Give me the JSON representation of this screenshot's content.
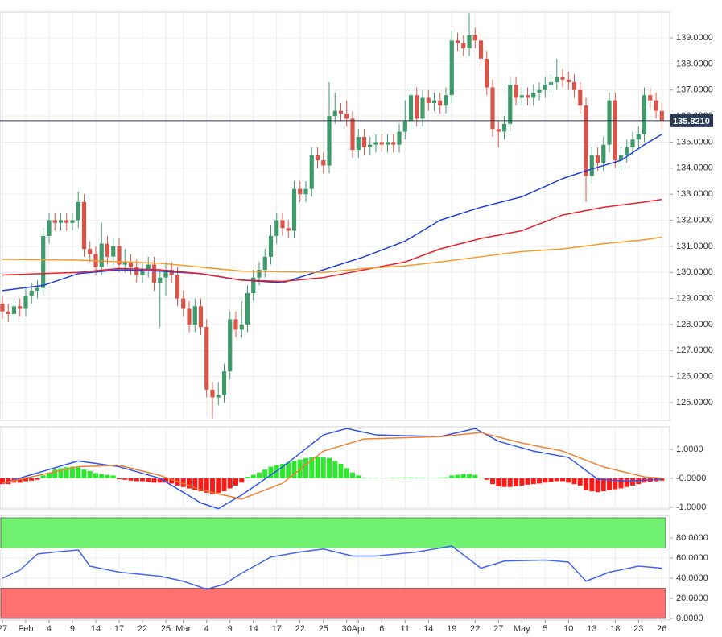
{
  "chart_data": [
    {
      "type": "candlestick",
      "xlim": [
        -0.41,
        114.34
      ],
      "ylim": [
        124.32,
        139.99
      ],
      "yticks": [
        {
          "value": 125,
          "label": "125.0000"
        },
        {
          "value": 126,
          "label": "126.0000"
        },
        {
          "value": 127,
          "label": "127.0000"
        },
        {
          "value": 128,
          "label": "128.0000"
        },
        {
          "value": 129,
          "label": "129.0000"
        },
        {
          "value": 130,
          "label": "130.0000"
        },
        {
          "value": 131,
          "label": "131.0000"
        },
        {
          "value": 132,
          "label": "132.0000"
        },
        {
          "value": 133,
          "label": "133.0000"
        },
        {
          "value": 134,
          "label": "134.0000"
        },
        {
          "value": 135,
          "label": "135.0000"
        },
        {
          "value": 136,
          "label": "136.0000"
        },
        {
          "value": 137,
          "label": "137.0000"
        },
        {
          "value": 138,
          "label": "138.0000"
        },
        {
          "value": 139,
          "label": "139.0000"
        }
      ],
      "grid": true,
      "up_color": "#3f9a6c",
      "down_color": "#d9554a",
      "open": [
        128.8,
        128.5,
        128.4,
        128.7,
        128.6,
        129.1,
        129.3,
        129.4,
        131.4,
        132.0,
        131.9,
        132.0,
        131.9,
        132.0,
        132.7,
        130.9,
        130.7,
        130.2,
        131.1,
        130.6,
        131.0,
        130.3,
        130.4,
        130.2,
        129.9,
        130.1,
        130.3,
        129.6,
        129.8,
        130.1,
        129.9,
        129.0,
        128.6,
        128.0,
        128.7,
        127.9,
        125.5,
        125.2,
        125.3,
        126.2,
        128.2,
        127.8,
        128.0,
        129.2,
        129.8,
        130.1,
        130.6,
        131.4,
        132.0,
        131.7,
        131.6,
        133.2,
        133.0,
        133.2,
        134.5,
        134.3,
        134.1,
        136.0,
        136.2,
        136.1,
        135.9,
        134.7,
        135.2,
        134.8,
        134.9,
        135.0,
        134.9,
        135.0,
        134.9,
        135.4,
        135.8,
        136.8,
        135.9,
        136.7,
        136.5,
        136.6,
        136.4,
        136.8,
        138.9,
        138.8,
        138.6,
        139.1,
        138.9,
        138.2,
        137.1,
        135.5,
        135.4,
        135.7,
        137.2,
        136.7,
        136.8,
        136.7,
        136.9,
        137.0,
        137.2,
        137.3,
        137.5,
        137.4,
        137.3,
        137.0,
        136.4,
        133.7,
        134.5,
        134.2,
        134.9,
        136.6,
        134.3,
        134.5,
        134.8,
        135.1,
        135.3,
        136.8,
        136.6,
        136.2
      ],
      "high": [
        129.1,
        128.8,
        129.0,
        129.0,
        129.4,
        129.6,
        129.7,
        131.7,
        132.3,
        132.3,
        132.3,
        132.3,
        132.3,
        133.1,
        133.0,
        131.2,
        131.0,
        131.9,
        131.4,
        131.3,
        131.3,
        130.9,
        130.7,
        130.5,
        130.4,
        130.6,
        130.6,
        130.1,
        130.4,
        130.4,
        130.2,
        129.3,
        128.9,
        129.0,
        129.0,
        128.2,
        125.8,
        125.8,
        126.5,
        128.5,
        128.5,
        128.9,
        129.5,
        130.1,
        130.4,
        130.9,
        131.8,
        132.3,
        132.3,
        132.0,
        133.5,
        133.5,
        133.5,
        134.8,
        134.8,
        134.6,
        137.3,
        136.9,
        136.5,
        136.6,
        136.2,
        135.5,
        135.5,
        135.2,
        135.3,
        135.3,
        135.3,
        135.3,
        135.7,
        136.6,
        137.1,
        137.1,
        137.0,
        137.0,
        136.9,
        136.9,
        137.1,
        139.3,
        139.2,
        139.1,
        139.95,
        139.4,
        139.2,
        138.5,
        137.4,
        135.8,
        136.0,
        137.5,
        137.5,
        137.1,
        137.1,
        137.2,
        137.3,
        137.5,
        137.6,
        138.2,
        137.8,
        137.7,
        137.6,
        137.3,
        136.7,
        134.8,
        134.8,
        135.2,
        136.9,
        136.9,
        134.8,
        135.1,
        135.4,
        135.6,
        137.1,
        137.1,
        136.9,
        136.5
      ],
      "low": [
        128.2,
        128.1,
        128.1,
        128.3,
        128.3,
        128.8,
        129.0,
        129.1,
        131.1,
        131.6,
        131.6,
        131.6,
        131.6,
        131.7,
        130.6,
        130.4,
        129.9,
        129.9,
        130.3,
        130.3,
        130.0,
        130.0,
        129.9,
        129.6,
        129.6,
        129.8,
        129.3,
        127.9,
        129.1,
        129.6,
        128.7,
        128.3,
        127.7,
        127.7,
        127.6,
        125.2,
        124.4,
        124.9,
        125.0,
        125.9,
        127.5,
        127.5,
        127.7,
        128.9,
        129.5,
        129.8,
        130.3,
        131.1,
        131.4,
        131.3,
        131.3,
        132.7,
        132.7,
        132.9,
        134.0,
        133.8,
        133.8,
        135.7,
        135.8,
        135.6,
        134.4,
        134.4,
        134.5,
        134.5,
        134.6,
        134.6,
        134.6,
        134.6,
        134.6,
        135.1,
        135.5,
        135.6,
        135.6,
        136.2,
        136.2,
        136.1,
        136.1,
        136.5,
        138.5,
        138.3,
        138.3,
        138.6,
        137.9,
        136.8,
        135.2,
        134.8,
        135.1,
        135.4,
        136.4,
        136.4,
        136.4,
        136.4,
        136.6,
        136.7,
        136.9,
        137.0,
        137.1,
        137.0,
        136.7,
        136.1,
        132.7,
        133.4,
        133.9,
        133.9,
        134.6,
        134.0,
        133.9,
        134.2,
        134.5,
        134.8,
        135.0,
        136.3,
        135.9,
        135.5
      ],
      "close": [
        128.5,
        128.4,
        128.7,
        128.6,
        129.1,
        129.3,
        129.4,
        131.4,
        132.0,
        131.9,
        132.0,
        131.9,
        132.0,
        132.7,
        130.9,
        130.7,
        130.2,
        131.1,
        130.6,
        131.0,
        130.3,
        130.4,
        130.2,
        129.9,
        130.1,
        130.3,
        129.6,
        129.8,
        130.1,
        129.9,
        129.0,
        128.6,
        128.0,
        128.7,
        127.9,
        125.5,
        125.2,
        125.3,
        126.2,
        128.2,
        127.8,
        128.0,
        129.2,
        129.8,
        130.1,
        130.6,
        131.4,
        132.0,
        131.7,
        131.6,
        133.2,
        133.0,
        133.2,
        134.5,
        134.3,
        134.1,
        136.0,
        136.2,
        136.1,
        135.9,
        134.7,
        135.2,
        134.8,
        134.9,
        135.0,
        134.9,
        135.0,
        134.9,
        135.4,
        135.8,
        136.8,
        135.9,
        136.7,
        136.5,
        136.6,
        136.4,
        136.8,
        138.9,
        138.8,
        138.6,
        139.1,
        138.9,
        138.2,
        137.1,
        135.5,
        135.4,
        135.7,
        137.2,
        136.7,
        136.8,
        136.7,
        136.9,
        137.0,
        137.2,
        137.3,
        137.5,
        137.4,
        137.3,
        137.0,
        136.4,
        133.7,
        134.5,
        134.2,
        134.9,
        136.6,
        134.3,
        134.5,
        134.8,
        135.1,
        135.3,
        136.8,
        136.6,
        136.2,
        135.821
      ],
      "series": [
        {
          "color": "#1f3fd8",
          "x": [
            0,
            7,
            13,
            20,
            27,
            34,
            41,
            48,
            55,
            62,
            69,
            75,
            82,
            89,
            96,
            100,
            103,
            106,
            110,
            113
          ],
          "values": [
            129.3,
            129.5,
            129.95,
            130.1,
            130.05,
            129.95,
            129.7,
            129.6,
            130.1,
            130.6,
            131.2,
            132.0,
            132.5,
            132.9,
            133.6,
            133.9,
            134.1,
            134.3,
            134.9,
            135.3
          ]
        },
        {
          "color": "#e8202a",
          "x": [
            0,
            13,
            20,
            27,
            34,
            41,
            48,
            55,
            62,
            69,
            75,
            82,
            89,
            96,
            103,
            110,
            113
          ],
          "values": [
            129.9,
            130.0,
            130.15,
            130.1,
            129.95,
            129.7,
            129.65,
            129.8,
            130.1,
            130.4,
            130.9,
            131.3,
            131.6,
            132.2,
            132.5,
            132.7,
            132.8
          ]
        },
        {
          "color": "#f39a2a",
          "x": [
            0,
            13,
            27,
            41,
            55,
            62,
            69,
            75,
            82,
            89,
            96,
            103,
            110,
            113
          ],
          "values": [
            130.5,
            130.47,
            130.35,
            130.05,
            130.0,
            130.15,
            130.25,
            130.4,
            130.6,
            130.8,
            130.9,
            131.1,
            131.25,
            131.35
          ]
        }
      ],
      "last_price": {
        "value": 135.821,
        "label": "135.8210",
        "color": "#2b3a55"
      }
    },
    {
      "type": "macd",
      "xlim": [
        -0.41,
        114.34
      ],
      "ylim": [
        -1.06,
        1.78
      ],
      "yticks": [
        {
          "value": 1,
          "label": "1.0000"
        },
        {
          "value": 0,
          "label": "-0.0000"
        },
        {
          "value": -1,
          "label": "-1.0000"
        }
      ],
      "grid": true,
      "up_color": "#2ee82e",
      "down_color": "#ff1a1a",
      "histogram": [
        -0.2,
        -0.2,
        -0.15,
        -0.15,
        -0.1,
        -0.08,
        -0.05,
        0.1,
        0.2,
        0.3,
        0.35,
        0.38,
        0.4,
        0.38,
        0.3,
        0.25,
        0.18,
        0.15,
        0.12,
        0.1,
        -0.03,
        -0.05,
        -0.08,
        -0.1,
        -0.1,
        -0.12,
        -0.15,
        -0.15,
        -0.15,
        -0.18,
        -0.25,
        -0.3,
        -0.35,
        -0.4,
        -0.45,
        -0.5,
        -0.55,
        -0.5,
        -0.45,
        -0.35,
        -0.25,
        -0.15,
        0.05,
        0.12,
        0.2,
        0.3,
        0.4,
        0.45,
        0.5,
        0.55,
        0.6,
        0.65,
        0.7,
        0.72,
        0.74,
        0.72,
        0.7,
        0.6,
        0.5,
        0.35,
        0.2,
        0.1,
        0.02,
        0.01,
        0.01,
        0.0,
        0.01,
        0.02,
        0.02,
        0.03,
        0.03,
        0.02,
        0.02,
        0.01,
        0.01,
        0.02,
        0.03,
        0.1,
        0.12,
        0.15,
        0.15,
        0.12,
        0.01,
        -0.05,
        -0.2,
        -0.28,
        -0.3,
        -0.3,
        -0.28,
        -0.25,
        -0.22,
        -0.2,
        -0.18,
        -0.15,
        -0.12,
        -0.1,
        -0.1,
        -0.15,
        -0.2,
        -0.25,
        -0.4,
        -0.45,
        -0.48,
        -0.45,
        -0.4,
        -0.38,
        -0.35,
        -0.3,
        -0.25,
        -0.2,
        -0.15,
        -0.12,
        -0.1,
        -0.08
      ],
      "series": [
        {
          "color": "#3355ee",
          "x": [
            0,
            13,
            20,
            27,
            34,
            37,
            41,
            48,
            55,
            59,
            64,
            75,
            81,
            85,
            91,
            97,
            102,
            107,
            113
          ],
          "values": [
            -0.17,
            0.6,
            0.4,
            0.0,
            -0.85,
            -1.05,
            -0.58,
            0.39,
            1.5,
            1.72,
            1.5,
            1.44,
            1.72,
            1.28,
            0.94,
            0.72,
            -0.03,
            -0.1,
            -0.03
          ]
        },
        {
          "color": "#f08030",
          "x": [
            0,
            13,
            20,
            27,
            34,
            41,
            48,
            55,
            62,
            75,
            82,
            89,
            96,
            103,
            110,
            113
          ],
          "values": [
            -0.17,
            0.4,
            0.45,
            0.1,
            -0.4,
            -0.72,
            -0.17,
            0.94,
            1.36,
            1.44,
            1.58,
            1.22,
            0.94,
            0.39,
            0.05,
            0.0
          ]
        }
      ]
    },
    {
      "type": "rsi",
      "xlim": [
        -0.41,
        114.34
      ],
      "ylim": [
        -1.6,
        102.4
      ],
      "yticks": [
        {
          "value": 0,
          "label": "0.0000"
        },
        {
          "value": 20,
          "label": "20.0000"
        },
        {
          "value": 40,
          "label": "40.0000"
        },
        {
          "value": 60,
          "label": "60.0000"
        },
        {
          "value": 80,
          "label": "80.0000"
        }
      ],
      "grid": true,
      "bands": [
        {
          "from": 70,
          "to": 100,
          "color": "#70f270"
        },
        {
          "from": 0,
          "to": 30,
          "color": "#ff7070"
        }
      ],
      "series": [
        {
          "color": "#4466ee",
          "x": [
            0,
            3,
            6,
            9,
            13,
            15,
            20,
            27,
            31,
            35,
            38,
            41,
            46,
            51,
            55,
            60,
            64,
            71,
            77,
            82,
            86,
            93,
            97,
            100,
            104,
            109,
            113
          ],
          "values": [
            40,
            48,
            64,
            66,
            68,
            52,
            46,
            42,
            37,
            29,
            34,
            45,
            61,
            66,
            69,
            62,
            62,
            66,
            72,
            50,
            57,
            58,
            56,
            37,
            46,
            52,
            50
          ]
        }
      ],
      "xticks": [
        {
          "value": 0,
          "label": "27"
        },
        {
          "value": 4,
          "label": "Feb"
        },
        {
          "value": 8,
          "label": "4"
        },
        {
          "value": 12,
          "label": "9"
        },
        {
          "value": 16,
          "label": "14"
        },
        {
          "value": 20,
          "label": "17"
        },
        {
          "value": 24,
          "label": "22"
        },
        {
          "value": 28,
          "label": "25"
        },
        {
          "value": 31,
          "label": "Mar"
        },
        {
          "value": 35,
          "label": "4"
        },
        {
          "value": 39,
          "label": "9"
        },
        {
          "value": 43,
          "label": "14"
        },
        {
          "value": 47,
          "label": "17"
        },
        {
          "value": 51,
          "label": "22"
        },
        {
          "value": 55,
          "label": "25"
        },
        {
          "value": 59,
          "label": "30"
        },
        {
          "value": 61,
          "label": "Apr"
        },
        {
          "value": 65,
          "label": "6"
        },
        {
          "value": 69,
          "label": "11"
        },
        {
          "value": 73,
          "label": "14"
        },
        {
          "value": 77,
          "label": "19"
        },
        {
          "value": 81,
          "label": "22"
        },
        {
          "value": 85,
          "label": "27"
        },
        {
          "value": 89,
          "label": "May"
        },
        {
          "value": 93,
          "label": "5"
        },
        {
          "value": 97,
          "label": "10"
        },
        {
          "value": 101,
          "label": "13"
        },
        {
          "value": 105,
          "label": "18"
        },
        {
          "value": 109,
          "label": "23"
        },
        {
          "value": 113,
          "label": "26"
        }
      ]
    }
  ]
}
